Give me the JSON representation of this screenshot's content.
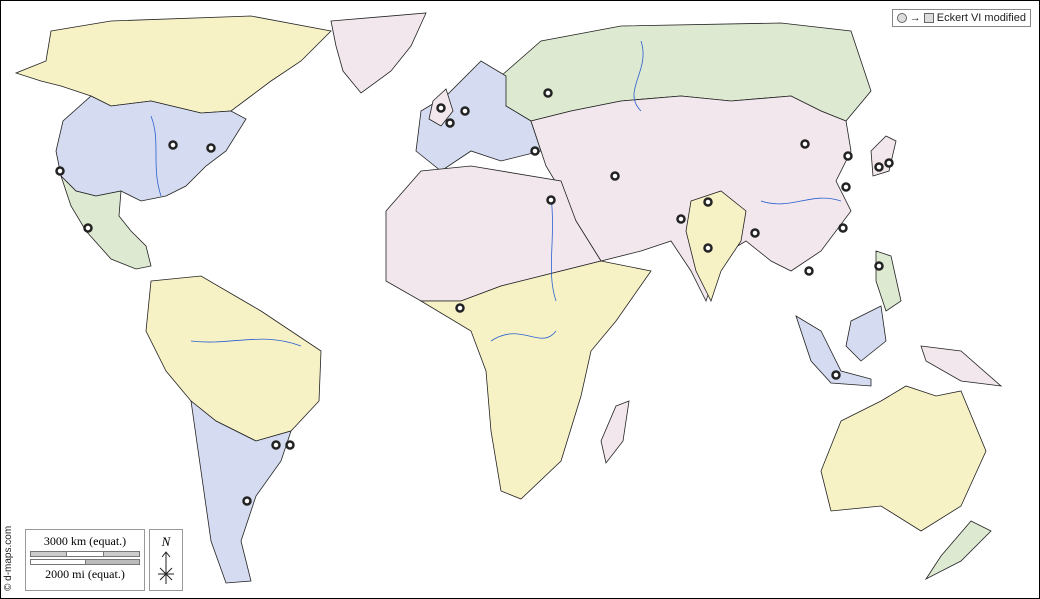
{
  "projection_label": "Eckert VI modified",
  "scale": {
    "km_label": "3000 km (equat.)",
    "mi_label": "2000 mi (equat.)"
  },
  "north_label": "N",
  "credit": "© d-maps.com",
  "colors": {
    "yellow": "#f7f2c6",
    "blue": "#d5dbf0",
    "green": "#dde9d0",
    "pink": "#f2e7ec",
    "river": "#2a5fd0",
    "ocean": "#ffffff"
  }
}
